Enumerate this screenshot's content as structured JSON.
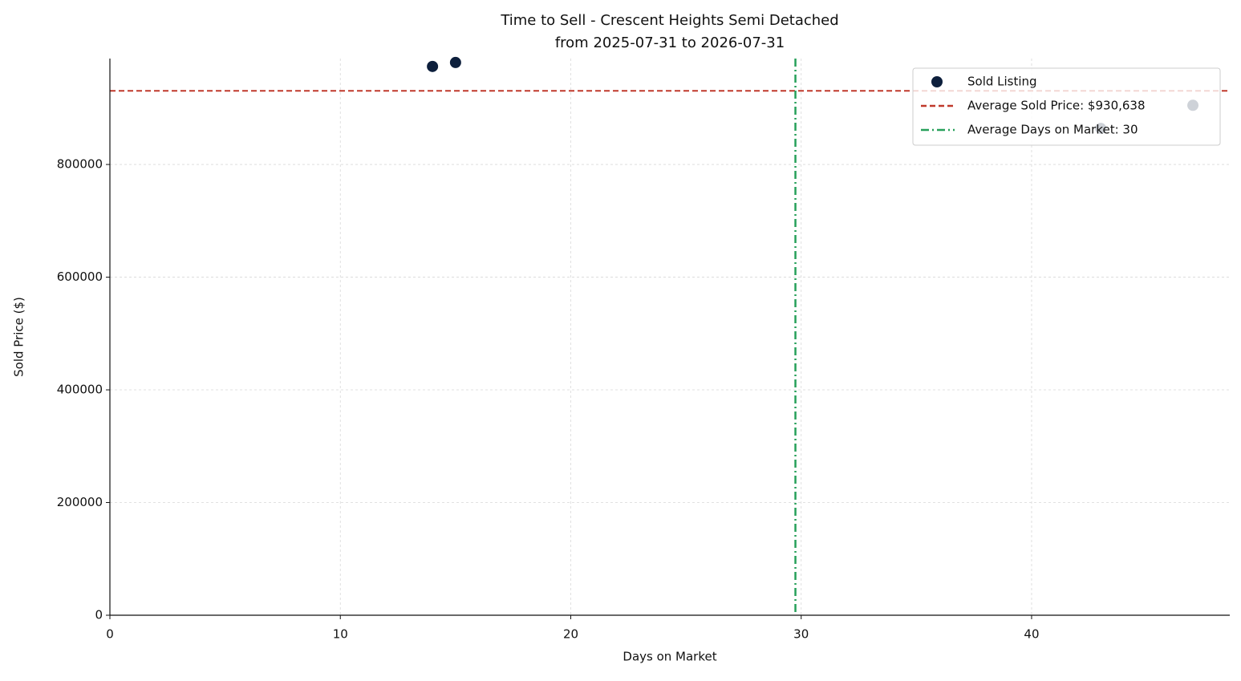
{
  "chart_data": {
    "type": "scatter",
    "title": "Time to Sell - Crescent Heights Semi Detached",
    "subtitle": "from 2025-07-31 to 2026-07-31",
    "xlabel": "Days on Market",
    "ylabel": "Sold Price ($)",
    "series": [
      {
        "name": "Sold Listing",
        "color": "#0d1f3c",
        "x": [
          14,
          15,
          43,
          47
        ],
        "values": [
          974000,
          981000,
          864000,
          905000
        ]
      }
    ],
    "hlines": [
      {
        "name": "Average Sold Price: $930,638",
        "value": 930638,
        "color": "#c0392b",
        "dash": "7,4"
      }
    ],
    "vlines": [
      {
        "name": "Average Days on Market: 30",
        "value": 29.75,
        "color": "#27a05a",
        "dash": "10,4,2,4"
      }
    ],
    "xlim": [
      0,
      48.6
    ],
    "ylim": [
      0,
      988000
    ],
    "xticks": [
      0,
      10,
      20,
      30,
      40
    ],
    "yticks": [
      0,
      200000,
      400000,
      600000,
      800000
    ],
    "grid": true,
    "legend": "upper right"
  }
}
